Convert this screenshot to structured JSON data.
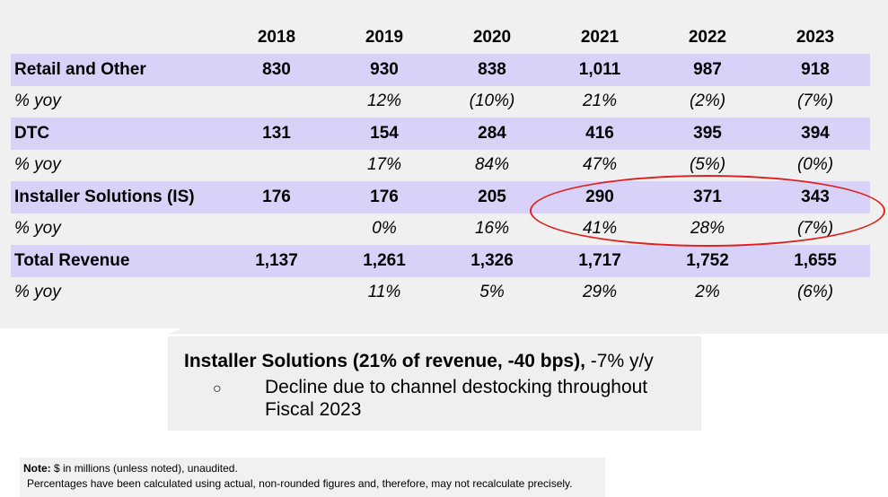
{
  "table": {
    "years": [
      "2018",
      "2019",
      "2020",
      "2021",
      "2022",
      "2023"
    ],
    "rows": [
      {
        "label": "Retail and Other",
        "values": [
          "830",
          "930",
          "838",
          "1,011",
          "987",
          "918"
        ]
      },
      {
        "label": "% yoy",
        "values": [
          "",
          "12%",
          "(10%)",
          "21%",
          "(2%)",
          "(7%)"
        ]
      },
      {
        "label": "DTC",
        "values": [
          "131",
          "154",
          "284",
          "416",
          "395",
          "394"
        ]
      },
      {
        "label": "% yoy",
        "values": [
          "",
          "17%",
          "84%",
          "47%",
          "(5%)",
          "(0%)"
        ]
      },
      {
        "label": "Installer Solutions (IS)",
        "values": [
          "176",
          "176",
          "205",
          "290",
          "371",
          "343"
        ]
      },
      {
        "label": "% yoy",
        "values": [
          "",
          "0%",
          "16%",
          "41%",
          "28%",
          "(7%)"
        ]
      },
      {
        "label": "Total Revenue",
        "values": [
          "1,137",
          "1,261",
          "1,326",
          "1,717",
          "1,752",
          "1,655"
        ]
      },
      {
        "label": "% yoy",
        "values": [
          "",
          "11%",
          "5%",
          "29%",
          "2%",
          "(6%)"
        ]
      }
    ]
  },
  "colors": {
    "row_shade": "#d9d2f8",
    "panel_bg": "#f0f0f0",
    "oval": "#e02020"
  },
  "callout": {
    "title_bold": "Installer Solutions (21% of revenue, -40 bps),",
    "title_rest": " -7% y/y",
    "bullet": "○",
    "text": "Decline due to channel destocking throughout Fiscal 2023"
  },
  "note": {
    "label": "Note:",
    "line1": " $ in millions (unless noted), unaudited.",
    "line2": "Percentages have been calculated using actual, non-rounded figures and, therefore, may not recalculate precisely."
  }
}
